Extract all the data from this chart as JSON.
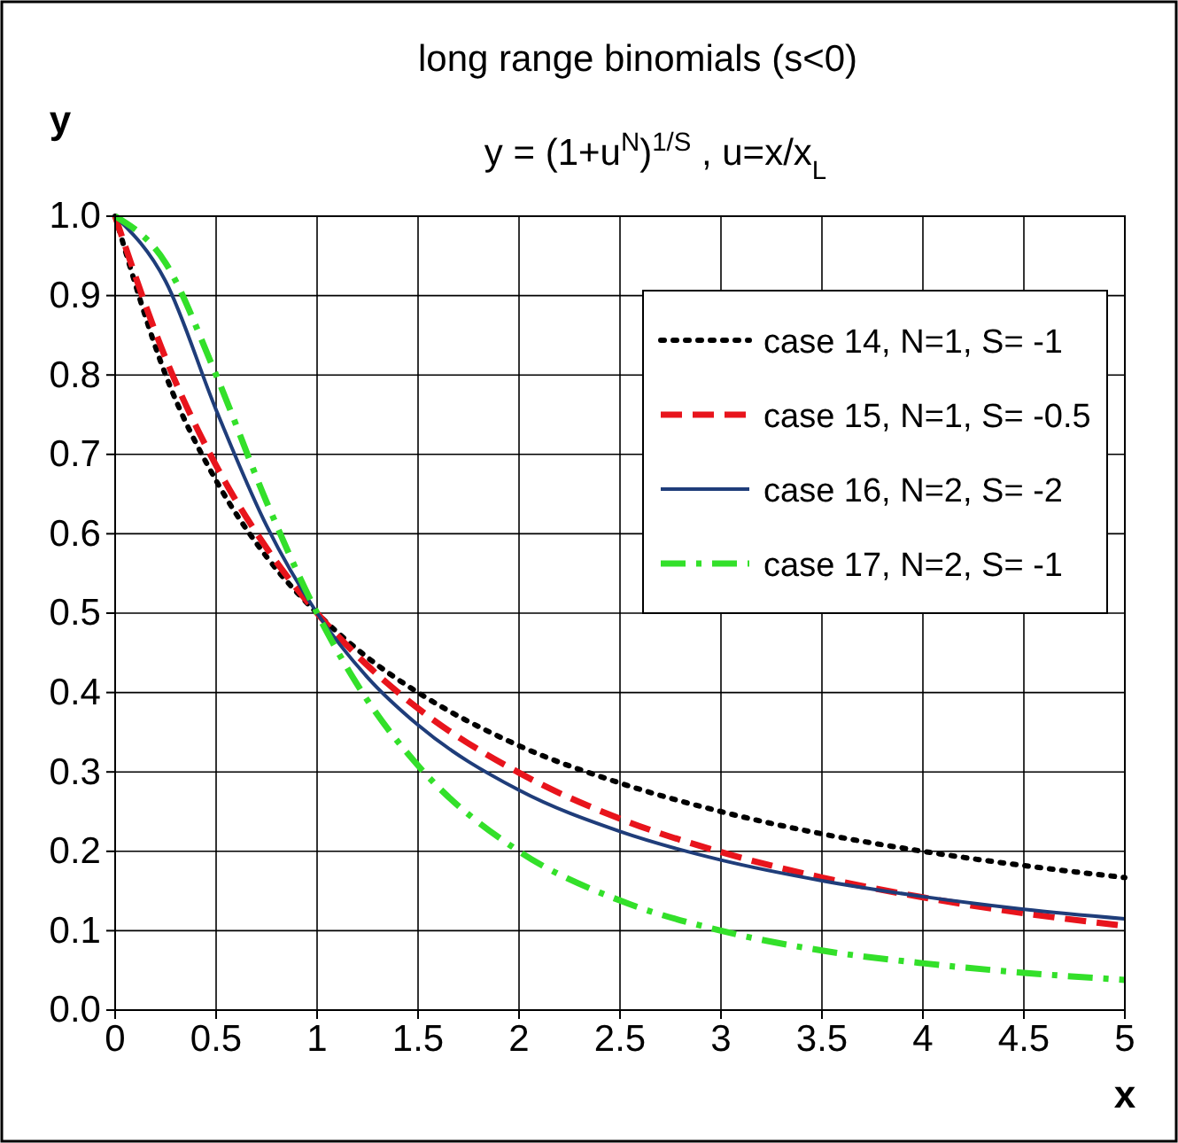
{
  "chart_data": {
    "type": "line",
    "title": "long range binomials (s<0)",
    "subtitle": "y = (1+u$^{N}$)$^{1/S}$ , u=x/x$_{L}$",
    "xlabel": "x",
    "ylabel": "y",
    "x": [
      0,
      0.25,
      0.5,
      0.75,
      1,
      1.25,
      1.5,
      2,
      2.5,
      3,
      3.5,
      4,
      4.5,
      5
    ],
    "series": [
      {
        "name": "case 14, N=1,  S= -1",
        "color": "#000000",
        "line_style": "dotted",
        "values": [
          1,
          0.8,
          0.667,
          0.571,
          0.5,
          0.444,
          0.4,
          0.333,
          0.286,
          0.25,
          0.222,
          0.2,
          0.182,
          0.167
        ]
      },
      {
        "name": "case 15, N=1,  S= -0.5",
        "color": "#e8141c",
        "line_style": "dashed",
        "values": [
          1,
          0.821,
          0.686,
          0.582,
          0.5,
          0.434,
          0.38,
          0.299,
          0.241,
          0.199,
          0.167,
          0.142,
          0.122,
          0.106
        ]
      },
      {
        "name": "case 16, N=2,  S= -2",
        "color": "#1f3d7a",
        "line_style": "solid",
        "values": [
          1,
          0.918,
          0.756,
          0.61,
          0.5,
          0.419,
          0.359,
          0.277,
          0.225,
          0.189,
          0.163,
          0.143,
          0.127,
          0.115
        ]
      },
      {
        "name": "case 17, N=2,  S= -1",
        "color": "#33e02a",
        "line_style": "dashdot",
        "values": [
          1,
          0.941,
          0.8,
          0.64,
          0.5,
          0.39,
          0.308,
          0.2,
          0.138,
          0.1,
          0.075,
          0.059,
          0.047,
          0.038
        ]
      }
    ],
    "xlim": [
      0,
      5
    ],
    "xticks": [
      0,
      0.5,
      1,
      1.5,
      2,
      2.5,
      3,
      3.5,
      4,
      4.5,
      5
    ],
    "ylim": [
      0,
      1
    ],
    "yticks": [
      {
        "value": 0,
        "label": "0.0"
      },
      {
        "value": 0.1,
        "label": "0.1"
      },
      {
        "value": 0.2,
        "label": "0.2"
      },
      {
        "value": 0.3,
        "label": "0.3"
      },
      {
        "value": 0.4,
        "label": "0.4"
      },
      {
        "value": 0.5,
        "label": "0.5"
      },
      {
        "value": 0.6,
        "label": "0.6"
      },
      {
        "value": 0.7,
        "label": "0.7"
      },
      {
        "value": 0.8,
        "label": "0.8"
      },
      {
        "value": 0.9,
        "label": "0.9"
      },
      {
        "value": 1,
        "label": "1.0"
      }
    ],
    "grid": true,
    "legend": "top right",
    "marker": "none"
  }
}
